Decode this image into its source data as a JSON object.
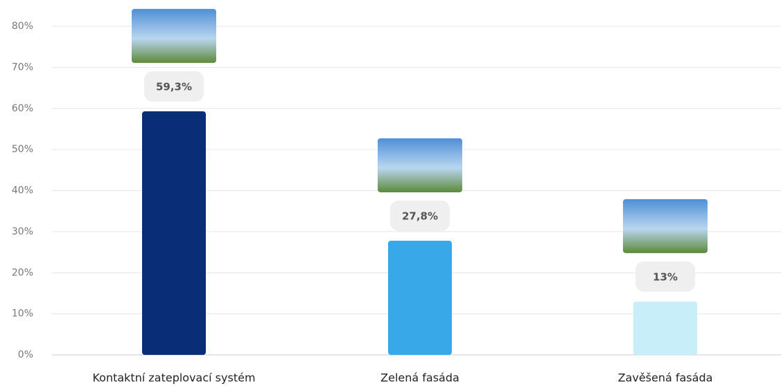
{
  "chart_data": {
    "type": "bar",
    "categories": [
      "Kontaktní zateplovací systém",
      "Zelená fasáda",
      "Zavěšená fasáda"
    ],
    "values": [
      59.3,
      27.8,
      13
    ],
    "value_labels": [
      "59,3%",
      "27,8%",
      "13%"
    ],
    "colors": [
      "#0a2d78",
      "#38a8e8",
      "#c8eef9"
    ],
    "ylim": [
      0,
      80
    ],
    "yticks": [
      {
        "value": 0,
        "label": "0%"
      },
      {
        "value": 10,
        "label": "10%"
      },
      {
        "value": 20,
        "label": "20%"
      },
      {
        "value": 30,
        "label": "30%"
      },
      {
        "value": 40,
        "label": "40%"
      },
      {
        "value": 50,
        "label": "50%"
      },
      {
        "value": 60,
        "label": "60%"
      },
      {
        "value": 70,
        "label": "70%"
      },
      {
        "value": 80,
        "label": "80%"
      }
    ],
    "grid": true
  }
}
